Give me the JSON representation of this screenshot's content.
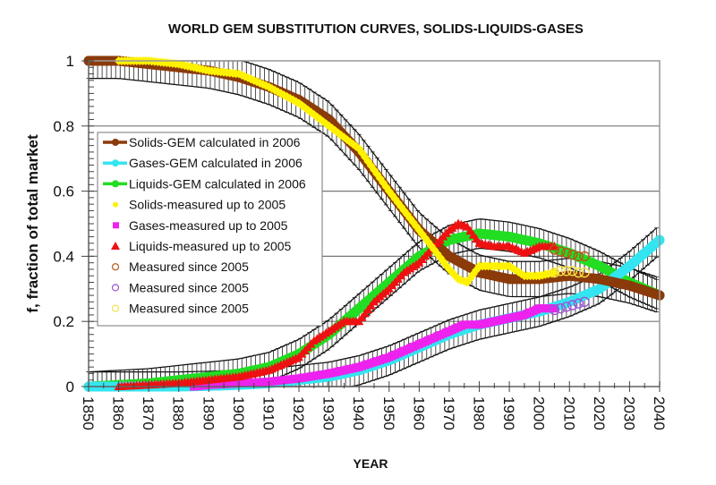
{
  "chart_data": {
    "type": "line",
    "title": "WORLD GEM SUBSTITUTION CURVES, SOLIDS-LIQUIDS-GASES",
    "xlabel": "YEAR",
    "ylabel": "f, fraction of total market",
    "xlim": [
      1850,
      2040
    ],
    "ylim": [
      0,
      1
    ],
    "x_ticks": [
      1850,
      1860,
      1870,
      1880,
      1890,
      1900,
      1910,
      1920,
      1930,
      1940,
      1950,
      1960,
      1970,
      1980,
      1990,
      2000,
      2010,
      2020,
      2030,
      2040
    ],
    "x_tick_labels": [
      "1850",
      "1860",
      "1870",
      "1880",
      "1890",
      "1900",
      "1910",
      "1920",
      "1930",
      "1940",
      "1950",
      "1960",
      "1970",
      "1980",
      "1990",
      "2000",
      "2010",
      "2020",
      "2030",
      "2040"
    ],
    "y_ticks": [
      0,
      0.2,
      0.4,
      0.6,
      0.8,
      1
    ],
    "y_tick_labels": [
      "0",
      "0.2",
      "0.4",
      "0.6",
      "0.8",
      "1"
    ],
    "grid": true,
    "legend_position": "left",
    "series": [
      {
        "name": "Solids-GEM calculated in 2006",
        "kind": "model",
        "color": "#8B3A0A",
        "marker": "circle-line",
        "error_band": 0.06,
        "x": [
          1850,
          1860,
          1870,
          1880,
          1890,
          1900,
          1910,
          1920,
          1930,
          1940,
          1950,
          1960,
          1970,
          1980,
          1990,
          2000,
          2010,
          2020,
          2030,
          2040
        ],
        "y": [
          1.0,
          1.0,
          0.99,
          0.98,
          0.97,
          0.95,
          0.92,
          0.88,
          0.82,
          0.72,
          0.6,
          0.48,
          0.4,
          0.35,
          0.33,
          0.33,
          0.34,
          0.33,
          0.31,
          0.28
        ]
      },
      {
        "name": "Gases-GEM calculated in 2006",
        "kind": "model",
        "color": "#33E5F0",
        "marker": "circle-line",
        "error_band": 0.05,
        "x": [
          1850,
          1860,
          1870,
          1880,
          1890,
          1900,
          1910,
          1920,
          1930,
          1940,
          1950,
          1960,
          1970,
          1980,
          1990,
          2000,
          2010,
          2020,
          2030,
          2040
        ],
        "y": [
          0.0,
          0.0,
          0.0,
          0.0,
          0.002,
          0.005,
          0.01,
          0.02,
          0.03,
          0.05,
          0.08,
          0.12,
          0.16,
          0.19,
          0.21,
          0.23,
          0.26,
          0.3,
          0.37,
          0.45
        ]
      },
      {
        "name": "Liquids-GEM calculated in 2006",
        "kind": "model",
        "color": "#22DD22",
        "marker": "circle-line",
        "error_band": 0.05,
        "x": [
          1850,
          1860,
          1870,
          1880,
          1890,
          1900,
          1910,
          1920,
          1930,
          1940,
          1950,
          1960,
          1970,
          1980,
          1990,
          2000,
          2010,
          2020,
          2030,
          2040
        ],
        "y": [
          0.0,
          0.005,
          0.01,
          0.02,
          0.03,
          0.04,
          0.06,
          0.1,
          0.16,
          0.24,
          0.32,
          0.4,
          0.45,
          0.47,
          0.46,
          0.44,
          0.41,
          0.37,
          0.32,
          0.28
        ]
      },
      {
        "name": "Solids-measured up to 2005",
        "kind": "measured",
        "color": "#FFF200",
        "marker": "diamond",
        "x": [
          1860,
          1870,
          1880,
          1890,
          1900,
          1910,
          1920,
          1930,
          1940,
          1950,
          1960,
          1965,
          1970,
          1973,
          1976,
          1980,
          1985,
          1990,
          1995,
          2000,
          2005
        ],
        "y": [
          1.0,
          1.0,
          0.99,
          0.97,
          0.96,
          0.92,
          0.87,
          0.8,
          0.73,
          0.6,
          0.48,
          0.42,
          0.36,
          0.33,
          0.32,
          0.37,
          0.37,
          0.37,
          0.34,
          0.34,
          0.35
        ]
      },
      {
        "name": "Gases-measured up to 2005",
        "kind": "measured",
        "color": "#EE22EE",
        "marker": "square",
        "x": [
          1885,
          1890,
          1900,
          1910,
          1920,
          1930,
          1940,
          1950,
          1960,
          1970,
          1975,
          1980,
          1985,
          1990,
          1995,
          2000,
          2005
        ],
        "y": [
          0.0,
          0.005,
          0.01,
          0.015,
          0.025,
          0.04,
          0.06,
          0.09,
          0.13,
          0.17,
          0.19,
          0.19,
          0.2,
          0.21,
          0.22,
          0.24,
          0.24
        ]
      },
      {
        "name": "Liquids-measured up to 2005",
        "kind": "measured",
        "color": "#EE1111",
        "marker": "triangle",
        "x": [
          1860,
          1870,
          1880,
          1890,
          1900,
          1910,
          1920,
          1925,
          1930,
          1935,
          1940,
          1945,
          1950,
          1955,
          1960,
          1965,
          1970,
          1973,
          1976,
          1980,
          1985,
          1990,
          1995,
          2000,
          2005
        ],
        "y": [
          0.0,
          0.005,
          0.01,
          0.02,
          0.03,
          0.05,
          0.09,
          0.14,
          0.17,
          0.2,
          0.2,
          0.26,
          0.3,
          0.35,
          0.38,
          0.43,
          0.48,
          0.5,
          0.49,
          0.44,
          0.43,
          0.43,
          0.41,
          0.43,
          0.43
        ]
      },
      {
        "name": "Measured since 2005",
        "kind": "measured-recent",
        "color": "#B5571C",
        "marker": "circle-open",
        "x": [
          2005,
          2007,
          2009,
          2011,
          2013,
          2015
        ],
        "y": [
          0.42,
          0.415,
          0.41,
          0.405,
          0.4,
          0.4
        ]
      },
      {
        "name": "Measured since 2005",
        "kind": "measured-recent",
        "color": "#9C55D6",
        "marker": "circle-open",
        "x": [
          2005,
          2007,
          2009,
          2011,
          2013,
          2015
        ],
        "y": [
          0.235,
          0.24,
          0.245,
          0.25,
          0.255,
          0.26
        ]
      },
      {
        "name": "Measured since 2005",
        "kind": "measured-recent",
        "color": "#F6E24A",
        "marker": "circle-open",
        "x": [
          2005,
          2007,
          2009,
          2011,
          2013,
          2015
        ],
        "y": [
          0.35,
          0.355,
          0.355,
          0.355,
          0.35,
          0.35
        ]
      }
    ]
  }
}
